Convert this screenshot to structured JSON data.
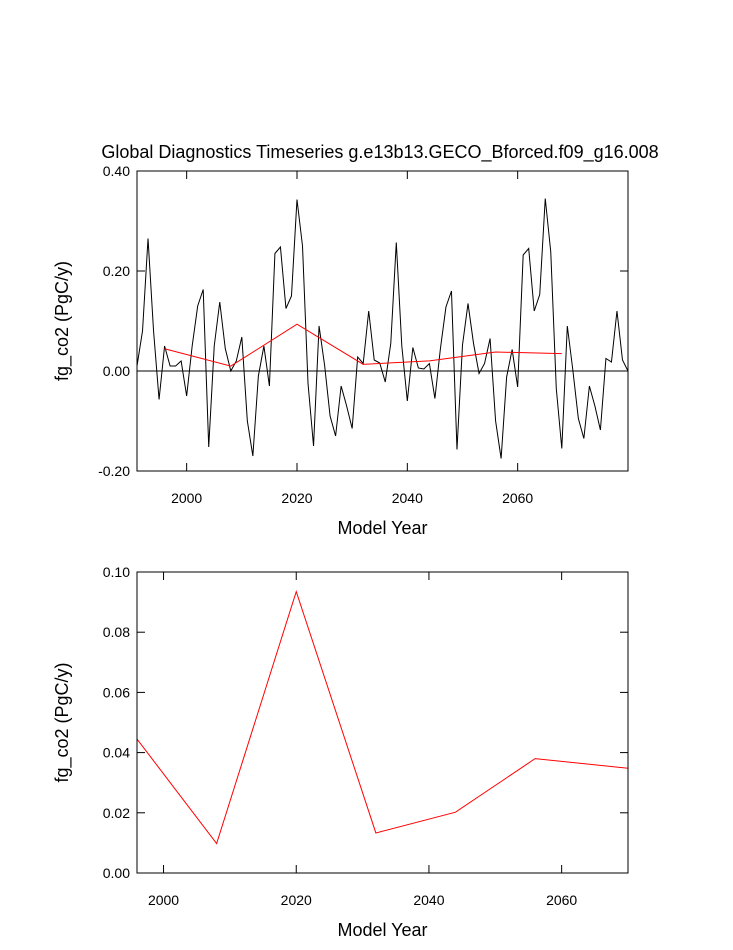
{
  "chart_data": [
    {
      "type": "line",
      "title": "Global Diagnostics Timeseries g.e13b13.GECO_Bforced.f09_g16.008",
      "x_label": "Model Year",
      "y_label": "fg_co2 (PgC/y)",
      "xlim": [
        1991,
        2080
      ],
      "ylim": [
        -0.2,
        0.4
      ],
      "xticks": [
        2000,
        2020,
        2040,
        2060
      ],
      "yticks": [
        {
          "value": 0.4,
          "label": "0.40"
        },
        {
          "value": 0.2,
          "label": "0.20"
        },
        {
          "value": 0,
          "label": "0.00"
        },
        {
          "value": -0.2,
          "label": "-0.20"
        }
      ],
      "reference_line": 0,
      "series": [
        {
          "color": "#000000",
          "x": [
            1991,
            1992,
            1993,
            1994,
            1995,
            1996,
            1997,
            1998,
            1999,
            2000,
            2001,
            2002,
            2003,
            2004,
            2005,
            2006,
            2007,
            2008,
            2009,
            2010,
            2011,
            2012,
            2013,
            2014,
            2015,
            2016,
            2017,
            2018,
            2019,
            2020,
            2021,
            2022,
            2023,
            2024,
            2025,
            2026,
            2027,
            2028,
            2029,
            2030,
            2031,
            2032,
            2033,
            2034,
            2035,
            2036,
            2037,
            2038,
            2039,
            2040,
            2041,
            2042,
            2043,
            2044,
            2045,
            2046,
            2047,
            2048,
            2049,
            2050,
            2051,
            2052,
            2053,
            2054,
            2055,
            2056,
            2057,
            2058,
            2059,
            2060,
            2061,
            2062,
            2063,
            2064,
            2065,
            2066,
            2067,
            2068,
            2069,
            2070,
            2071,
            2072,
            2073,
            2074,
            2075,
            2076,
            2077,
            2078,
            2079,
            2080
          ],
          "values": [
            0.01,
            0.08,
            0.265,
            0.08,
            -0.057,
            0.05,
            0.01,
            0.01,
            0.02,
            -0.05,
            0.05,
            0.13,
            0.163,
            -0.152,
            0.05,
            0.138,
            0.045,
            0.0,
            0.02,
            0.068,
            -0.1,
            -0.17,
            -0.01,
            0.05,
            -0.03,
            0.235,
            0.248,
            0.125,
            0.15,
            0.343,
            0.25,
            -0.025,
            -0.15,
            0.09,
            0.012,
            -0.09,
            -0.13,
            -0.03,
            -0.07,
            -0.115,
            0.028,
            0.015,
            0.12,
            0.022,
            0.016,
            -0.022,
            0.055,
            0.257,
            0.05,
            -0.06,
            0.047,
            0.006,
            0.004,
            0.015,
            -0.055,
            0.045,
            0.128,
            0.16,
            -0.157,
            0.052,
            0.135,
            0.055,
            -0.005,
            0.015,
            0.065,
            -0.1,
            -0.175,
            -0.012,
            0.043,
            -0.032,
            0.232,
            0.245,
            0.12,
            0.153,
            0.345,
            0.238,
            -0.035,
            -0.155,
            0.09,
            0.002,
            -0.095,
            -0.135,
            -0.03,
            -0.07,
            -0.118,
            0.025,
            0.018,
            0.12,
            0.022,
            0.0
          ]
        },
        {
          "color": "#ff0000",
          "x": [
            1996,
            2008,
            2020,
            2032,
            2044,
            2056,
            2068
          ],
          "values": [
            0.0445,
            0.0098,
            0.0935,
            0.0133,
            0.0202,
            0.038,
            0.0348
          ]
        }
      ]
    },
    {
      "type": "line",
      "x_label": "Model Year",
      "y_label": "fg_co2 (PgC/y)",
      "xlim": [
        1996,
        2070
      ],
      "ylim": [
        0,
        0.1
      ],
      "xticks": [
        2000,
        2020,
        2040,
        2060
      ],
      "yticks": [
        {
          "value": 0.1,
          "label": "0.10"
        },
        {
          "value": 0.08,
          "label": "0.08"
        },
        {
          "value": 0.06,
          "label": "0.06"
        },
        {
          "value": 0.04,
          "label": "0.04"
        },
        {
          "value": 0.02,
          "label": "0.02"
        },
        {
          "value": 0,
          "label": "0.00"
        }
      ],
      "series": [
        {
          "color": "#ff0000",
          "x": [
            1996,
            2008,
            2020,
            2032,
            2044,
            2056,
            2070
          ],
          "values": [
            0.0445,
            0.0098,
            0.0935,
            0.0133,
            0.0202,
            0.038,
            0.0348
          ]
        }
      ]
    }
  ]
}
